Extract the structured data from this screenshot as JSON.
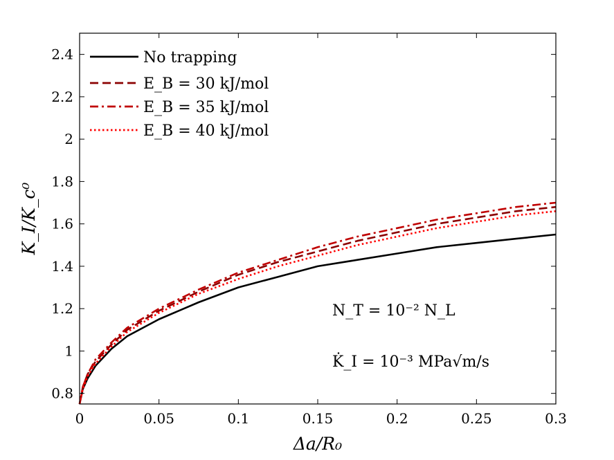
{
  "chart_data": {
    "type": "line",
    "title": "",
    "xlabel": "Δa/R₀",
    "ylabel": "K_I/K_c⁰",
    "xlim": [
      0,
      0.3
    ],
    "ylim": [
      0.75,
      2.5
    ],
    "xticks": [
      "0",
      "0.05",
      "0.1",
      "0.15",
      "0.2",
      "0.25",
      "0.3"
    ],
    "xtick_values": [
      0,
      0.05,
      0.1,
      0.15,
      0.2,
      0.25,
      0.3
    ],
    "yticks": [
      "0.8",
      "1",
      "1.2",
      "1.4",
      "1.6",
      "1.8",
      "2",
      "2.2",
      "2.4"
    ],
    "ytick_values": [
      0.8,
      1.0,
      1.2,
      1.4,
      1.6,
      1.8,
      2.0,
      2.2,
      2.4
    ],
    "grid": false,
    "legend_position": "top-left",
    "x": [
      0,
      0.002,
      0.005,
      0.01,
      0.02,
      0.03,
      0.05,
      0.075,
      0.1,
      0.125,
      0.15,
      0.175,
      0.2,
      0.225,
      0.25,
      0.275,
      0.3
    ],
    "series": [
      {
        "name": "No trapping",
        "style": "solid",
        "color": "#000000",
        "values": [
          0.75,
          0.82,
          0.87,
          0.93,
          1.01,
          1.07,
          1.15,
          1.23,
          1.3,
          1.35,
          1.4,
          1.43,
          1.46,
          1.49,
          1.51,
          1.53,
          1.55
        ]
      },
      {
        "name": "E_B = 30 kJ/mol",
        "style": "dashed",
        "color": "#8b0000",
        "values": [
          0.75,
          0.83,
          0.89,
          0.95,
          1.03,
          1.1,
          1.19,
          1.28,
          1.36,
          1.42,
          1.47,
          1.52,
          1.56,
          1.6,
          1.63,
          1.66,
          1.68
        ]
      },
      {
        "name": "E_B = 35 kJ/mol",
        "style": "dashdot",
        "color": "#c00000",
        "values": [
          0.75,
          0.83,
          0.89,
          0.96,
          1.04,
          1.11,
          1.2,
          1.29,
          1.37,
          1.43,
          1.49,
          1.54,
          1.58,
          1.62,
          1.65,
          1.68,
          1.7
        ]
      },
      {
        "name": "E_B = 40 kJ/mol",
        "style": "dotted",
        "color": "#ff0000",
        "values": [
          0.75,
          0.82,
          0.88,
          0.94,
          1.02,
          1.09,
          1.18,
          1.27,
          1.34,
          1.4,
          1.45,
          1.5,
          1.54,
          1.58,
          1.61,
          1.64,
          1.66
        ]
      }
    ],
    "annotations": [
      {
        "text": "N_T = 10⁻² N_L"
      },
      {
        "text": "K̇_I = 10⁻³ MPa√m/s"
      }
    ]
  }
}
